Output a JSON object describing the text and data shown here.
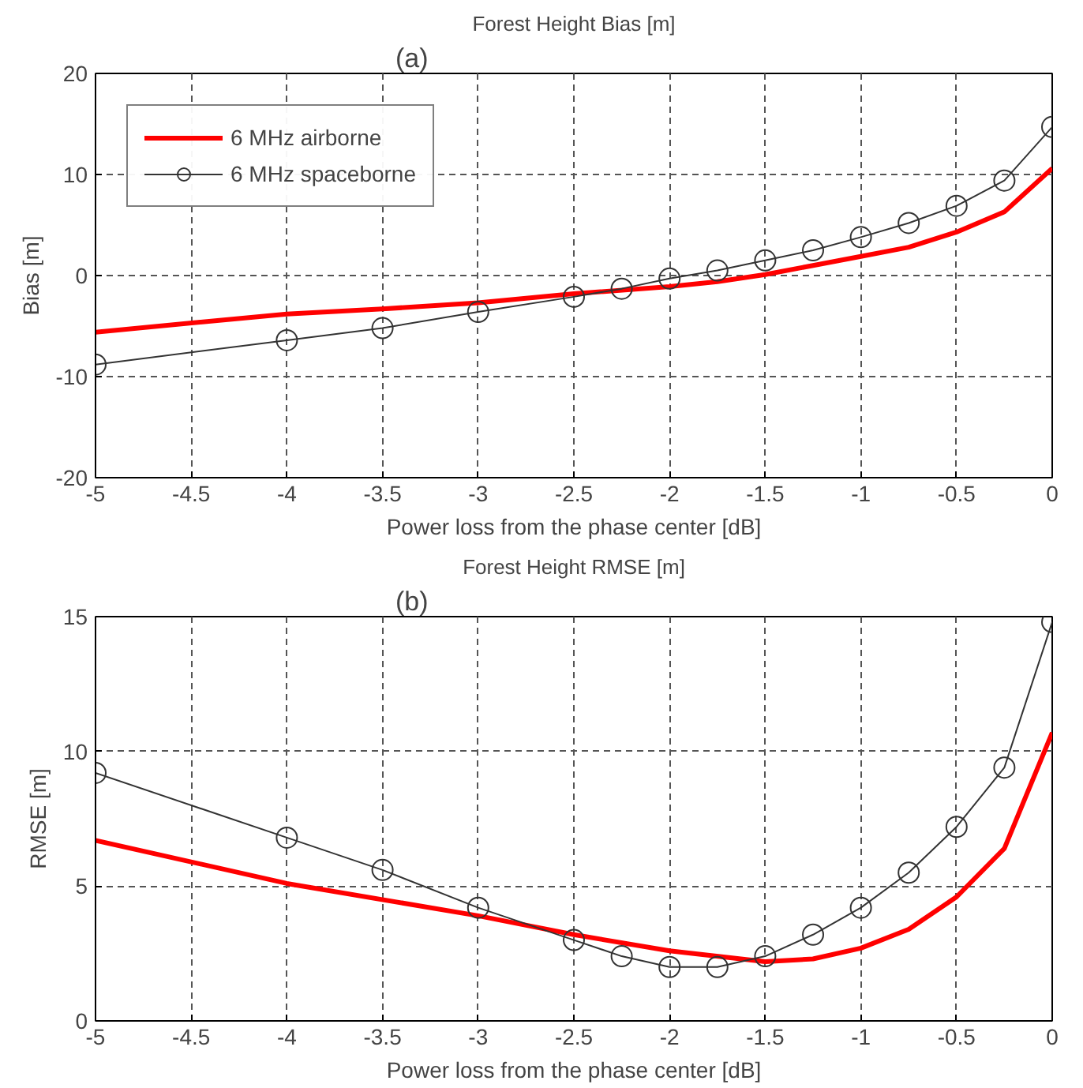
{
  "chart_data": [
    {
      "type": "line",
      "title": "Forest Height Bias [m]",
      "annotations": [
        "(a)"
      ],
      "xlabel": "Power loss from the phase center [dB]",
      "ylabel": "Bias [m]",
      "xlim": [
        -5,
        0
      ],
      "xticks": [
        -5,
        -4.5,
        -4,
        -3.5,
        -3,
        -2.5,
        -2,
        -1.5,
        -1,
        -0.5,
        0
      ],
      "ylim": [
        -20,
        20
      ],
      "yticks": [
        -20,
        -10,
        0,
        10,
        20
      ],
      "grid": true,
      "legend": "top left",
      "series": [
        {
          "name": "6 MHz airborne",
          "color": "#ff0000",
          "marker": "none",
          "x": [
            -5,
            -4,
            -3.5,
            -3,
            -2.5,
            -2,
            -1.75,
            -1.5,
            -1.25,
            -1,
            -0.75,
            -0.5,
            -0.25,
            0
          ],
          "values": [
            -5.6,
            -3.8,
            -3.3,
            -2.7,
            -1.8,
            -1.1,
            -0.6,
            0.1,
            1.0,
            1.9,
            2.8,
            4.3,
            6.3,
            10.6
          ]
        },
        {
          "name": "6 MHz spaceborne",
          "color": "#333333",
          "marker": "circle",
          "x": [
            -5,
            -4,
            -3.5,
            -3,
            -2.5,
            -2.25,
            -2,
            -1.75,
            -1.5,
            -1.25,
            -1,
            -0.75,
            -0.5,
            -0.25,
            0
          ],
          "values": [
            -8.8,
            -6.4,
            -5.2,
            -3.6,
            -2.1,
            -1.3,
            -0.3,
            0.5,
            1.5,
            2.5,
            3.8,
            5.2,
            6.9,
            9.4,
            14.7
          ]
        }
      ]
    },
    {
      "type": "line",
      "title": "Forest Height RMSE [m]",
      "annotations": [
        "(b)"
      ],
      "xlabel": "Power loss from the phase center [dB]",
      "ylabel": "RMSE [m]",
      "xlim": [
        -5,
        0
      ],
      "xticks": [
        -5,
        -4.5,
        -4,
        -3.5,
        -3,
        -2.5,
        -2,
        -1.5,
        -1,
        -0.5,
        0
      ],
      "ylim": [
        0,
        15
      ],
      "yticks": [
        0,
        5,
        10,
        15
      ],
      "grid": true,
      "series": [
        {
          "color": "#ff0000",
          "marker": "none",
          "x": [
            -5,
            -4,
            -3,
            -2.5,
            -2,
            -1.5,
            -1.25,
            -1,
            -0.75,
            -0.5,
            -0.25,
            0
          ],
          "values": [
            6.7,
            5.1,
            3.9,
            3.2,
            2.6,
            2.2,
            2.3,
            2.7,
            3.4,
            4.6,
            6.4,
            10.7
          ]
        },
        {
          "color": "#333333",
          "marker": "circle",
          "x": [
            -5,
            -4,
            -3.5,
            -3,
            -2.5,
            -2.25,
            -2,
            -1.75,
            -1.5,
            -1.25,
            -1,
            -0.75,
            -0.5,
            -0.25,
            0
          ],
          "values": [
            9.2,
            6.8,
            5.6,
            4.2,
            3.0,
            2.4,
            2.0,
            2.0,
            2.4,
            3.2,
            4.2,
            5.5,
            7.2,
            9.4,
            14.8
          ]
        }
      ]
    }
  ]
}
